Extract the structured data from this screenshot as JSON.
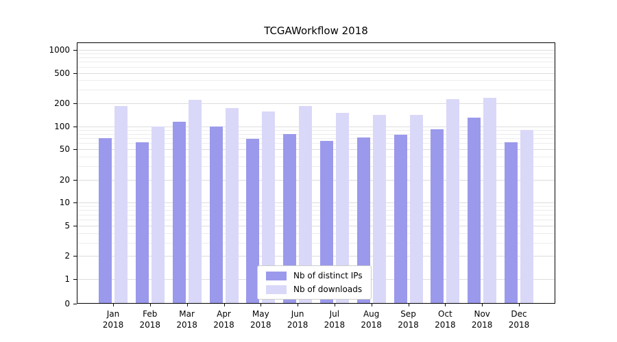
{
  "title": "TCGAWorkflow 2018",
  "chart_data": {
    "type": "bar",
    "scale": "symlog",
    "grid": true,
    "minor_grid": true,
    "legend_position": "lower center",
    "ylim": [
      0,
      1000
    ],
    "yticks": [
      0,
      1,
      2,
      5,
      10,
      20,
      50,
      100,
      200,
      500,
      1000
    ],
    "categories": [
      "Jan 2018",
      "Feb 2018",
      "Mar 2018",
      "Apr 2018",
      "May 2018",
      "Jun 2018",
      "Jul 2018",
      "Aug 2018",
      "Sep 2018",
      "Oct 2018",
      "Nov 2018",
      "Dec 2018"
    ],
    "series": [
      {
        "name": "Nb of distinct IPs",
        "color": "#9b99ec",
        "values": [
          70,
          62,
          115,
          100,
          68,
          80,
          65,
          72,
          78,
          92,
          130,
          62
        ]
      },
      {
        "name": "Nb of downloads",
        "color": "#d9d8f8",
        "values": [
          185,
          100,
          220,
          175,
          155,
          185,
          150,
          140,
          140,
          225,
          235,
          90
        ]
      }
    ]
  }
}
